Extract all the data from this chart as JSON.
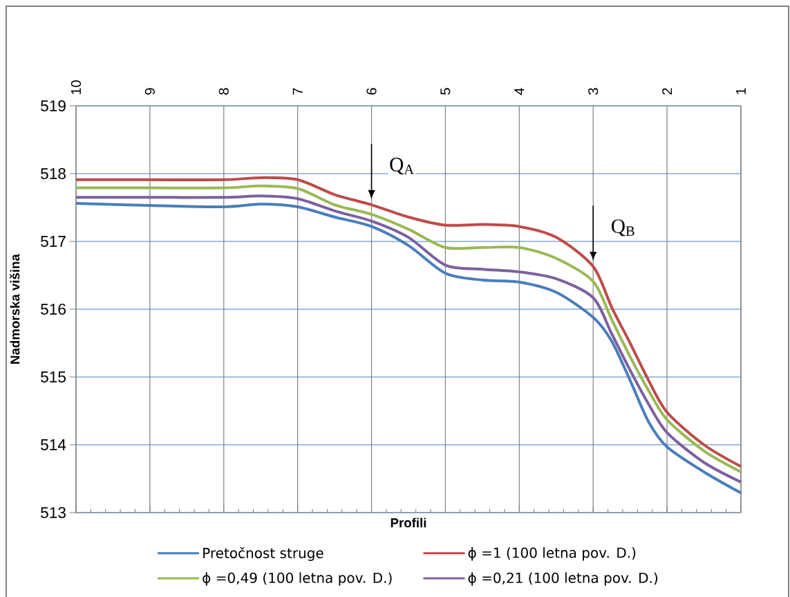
{
  "chart_data": {
    "type": "line",
    "xlabel": "Profili",
    "ylabel": "Nadmorska višina",
    "x": [
      10,
      9,
      8,
      7.5,
      7,
      6.5,
      6,
      5.5,
      5,
      4.5,
      4,
      3.5,
      3,
      2.75,
      2.5,
      2.25,
      2,
      1.5,
      1
    ],
    "series": [
      {
        "name": "Pretočnost struge",
        "color": "#4a7ebb",
        "values": [
          517.56,
          517.53,
          517.51,
          517.55,
          517.51,
          517.36,
          517.22,
          516.94,
          516.53,
          516.43,
          516.4,
          516.25,
          515.88,
          515.53,
          514.95,
          514.34,
          513.97,
          513.6,
          513.29
        ]
      },
      {
        "name": "ϕ =1 (100 letna pov. D.)",
        "color": "#be4b48",
        "values": [
          517.91,
          517.91,
          517.91,
          517.94,
          517.91,
          517.69,
          517.54,
          517.36,
          517.24,
          517.25,
          517.22,
          517.06,
          516.63,
          516.03,
          515.5,
          514.95,
          514.48,
          514.0,
          513.68
        ]
      },
      {
        "name": "ϕ =0,49 (100 letna pov. D.)",
        "color": "#98b954",
        "values": [
          517.79,
          517.79,
          517.79,
          517.82,
          517.78,
          517.54,
          517.4,
          517.18,
          516.91,
          516.91,
          516.91,
          516.75,
          516.41,
          515.85,
          515.3,
          514.8,
          514.37,
          513.91,
          513.6
        ]
      },
      {
        "name": "ϕ =0,21 (100 letna pov. D.)",
        "color": "#7d60a0",
        "values": [
          517.65,
          517.65,
          517.65,
          517.67,
          517.63,
          517.45,
          517.3,
          517.06,
          516.65,
          516.59,
          516.55,
          516.45,
          516.17,
          515.64,
          515.1,
          514.6,
          514.18,
          513.74,
          513.45
        ]
      }
    ],
    "xlim": [
      10,
      1
    ],
    "xticks": [
      10,
      9,
      8,
      7,
      6,
      5,
      4,
      3,
      2,
      1
    ],
    "ylim": [
      513,
      519
    ],
    "yticks": [
      513,
      514,
      515,
      516,
      517,
      518,
      519
    ],
    "annotations": [
      {
        "text": "Q$_{A}$",
        "x": 6,
        "y": 517.54
      },
      {
        "text": "Q$_{B}$",
        "x": 3,
        "y": 516.63
      }
    ],
    "grid": true,
    "legend": "bottom",
    "marker": "none",
    "line_style": "solid"
  }
}
